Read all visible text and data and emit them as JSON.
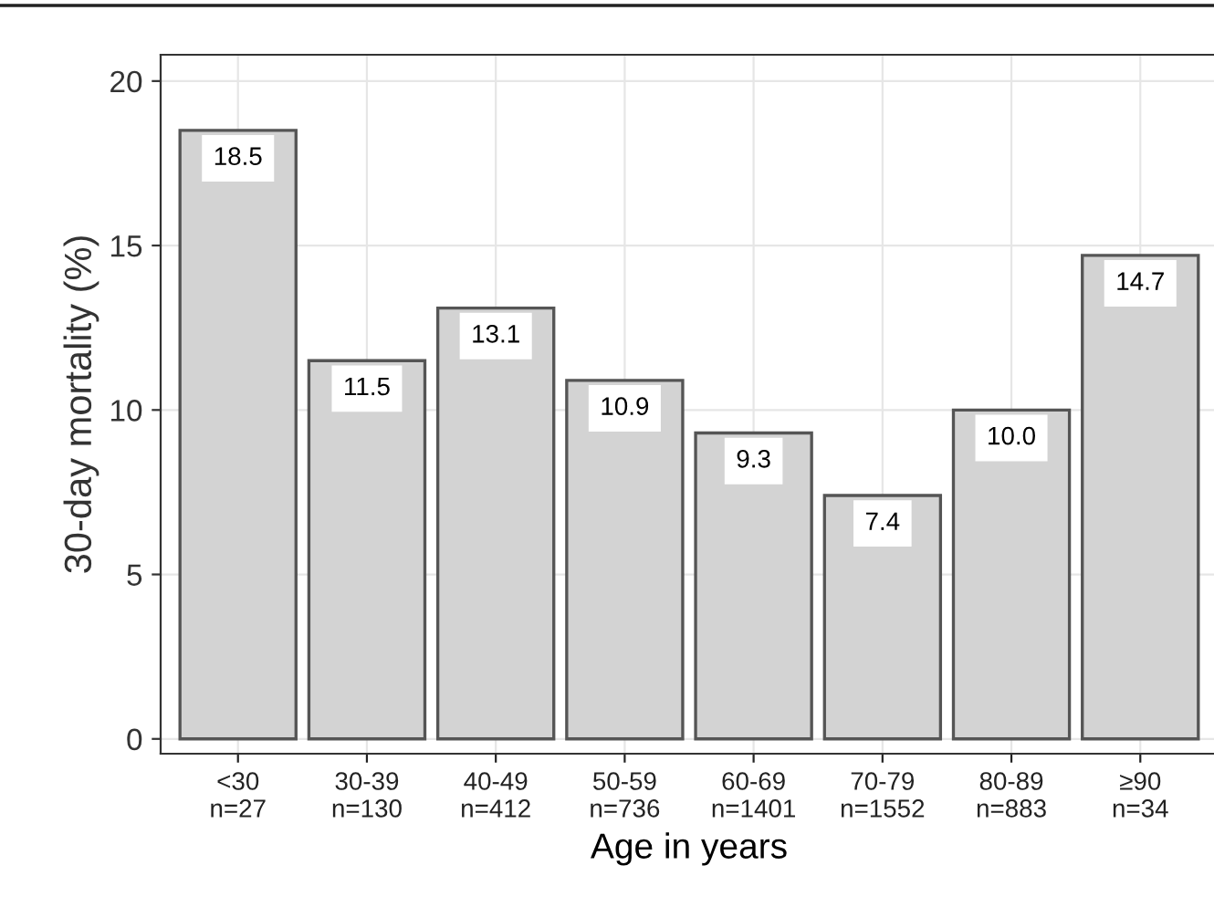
{
  "chart_data": {
    "type": "bar",
    "xlabel": "Age in years",
    "ylabel": "30-day mortality (%)",
    "categories": [
      "<30\nn=27",
      "30-39\nn=130",
      "40-49\nn=412",
      "50-59\nn=736",
      "60-69\nn=1401",
      "70-79\nn=1552",
      "80-89\nn=883",
      "≥90\nn=34"
    ],
    "values": [
      18.5,
      11.5,
      13.1,
      10.9,
      9.3,
      7.4,
      10.0,
      14.7
    ],
    "value_labels": [
      "18.5",
      "11.5",
      "13.1",
      "10.9",
      "9.3",
      "7.4",
      "10.0",
      "14.7"
    ],
    "color": "#d3d3d3",
    "ylim": [
      -0.45,
      20.8
    ],
    "yticks": [
      0,
      5,
      10,
      15,
      20
    ],
    "grid": true
  }
}
